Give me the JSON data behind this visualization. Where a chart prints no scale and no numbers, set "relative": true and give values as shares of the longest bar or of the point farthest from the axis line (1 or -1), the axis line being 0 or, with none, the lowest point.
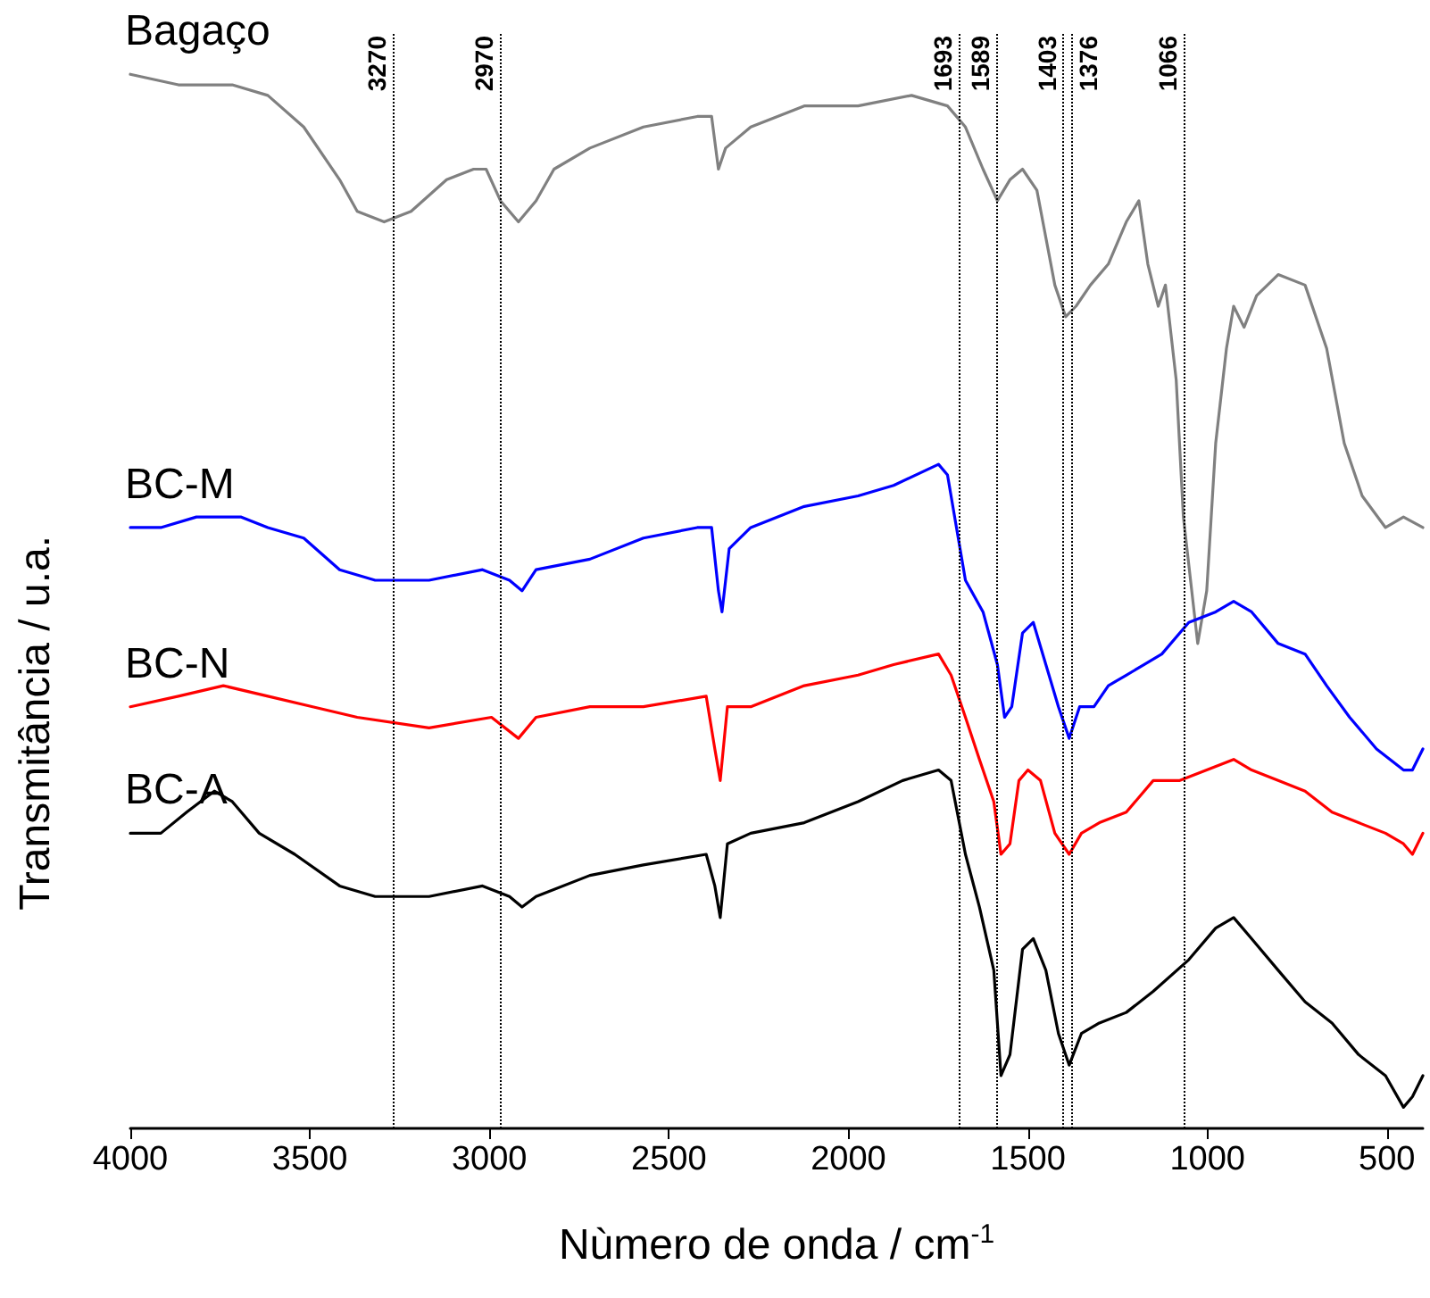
{
  "chart_data": {
    "type": "line",
    "relative": true,
    "xlabel": "Nùmero de onda / cm$^{-1}$",
    "ylabel": "Transmitância / u.a.",
    "xlim": [
      4000,
      400
    ],
    "xticks": [
      4000,
      3500,
      3000,
      2500,
      2000,
      1500,
      1000,
      500
    ],
    "grid": false,
    "legend": false,
    "marker": "none",
    "line_style": "solid",
    "ref_lines": [
      {
        "axis": "x",
        "value": 3270,
        "label": "3270",
        "line_style": "dotted"
      },
      {
        "axis": "x",
        "value": 2970,
        "label": "2970",
        "line_style": "dotted"
      },
      {
        "axis": "x",
        "value": 1693,
        "label": "1693",
        "line_style": "dotted"
      },
      {
        "axis": "x",
        "value": 1589,
        "label": "1589",
        "line_style": "dotted"
      },
      {
        "axis": "x",
        "value": 1403,
        "label": "1403",
        "line_style": "dotted"
      },
      {
        "axis": "x",
        "value": 1376,
        "label": "1376",
        "line_style": "dotted"
      },
      {
        "axis": "x",
        "value": 1066,
        "label": "1066",
        "line_style": "dotted"
      }
    ],
    "series": [
      {
        "name": "Bagaço",
        "color": "#808080",
        "x": [
          4000,
          3866,
          3716,
          3617,
          3517,
          3417,
          3368,
          3293,
          3218,
          3119,
          3044,
          3009,
          2969,
          2919,
          2870,
          2820,
          2720,
          2571,
          2421,
          2381,
          2362,
          2342,
          2272,
          2123,
          1973,
          1824,
          1724,
          1674,
          1625,
          1585,
          1550,
          1515,
          1475,
          1425,
          1395,
          1366,
          1326,
          1276,
          1226,
          1191,
          1166,
          1137,
          1117,
          1087,
          1067,
          1027,
          1002,
          977,
          947,
          927,
          898,
          863,
          803,
          728,
          668,
          619,
          569,
          504,
          454,
          400
        ],
        "values": [
          1.0,
          0.99,
          0.99,
          0.98,
          0.95,
          0.9,
          0.87,
          0.86,
          0.87,
          0.9,
          0.91,
          0.91,
          0.88,
          0.86,
          0.88,
          0.91,
          0.93,
          0.95,
          0.96,
          0.96,
          0.91,
          0.93,
          0.95,
          0.97,
          0.97,
          0.98,
          0.97,
          0.95,
          0.91,
          0.88,
          0.9,
          0.91,
          0.89,
          0.8,
          0.77,
          0.78,
          0.8,
          0.82,
          0.86,
          0.88,
          0.82,
          0.78,
          0.8,
          0.71,
          0.58,
          0.46,
          0.51,
          0.65,
          0.74,
          0.78,
          0.76,
          0.79,
          0.81,
          0.8,
          0.74,
          0.65,
          0.6,
          0.57,
          0.58,
          0.57
        ]
      },
      {
        "name": "BC-M",
        "color": "#0000ff",
        "x": [
          4000,
          3915,
          3816,
          3691,
          3617,
          3517,
          3417,
          3318,
          3168,
          3019,
          2944,
          2909,
          2870,
          2720,
          2571,
          2421,
          2381,
          2362,
          2352,
          2332,
          2272,
          2123,
          1973,
          1874,
          1749,
          1724,
          1699,
          1674,
          1625,
          1585,
          1565,
          1545,
          1515,
          1485,
          1450,
          1415,
          1385,
          1356,
          1316,
          1276,
          1226,
          1176,
          1127,
          1052,
          977,
          927,
          877,
          803,
          728,
          668,
          604,
          529,
          454,
          429,
          400
        ],
        "values": [
          0.57,
          0.57,
          0.58,
          0.58,
          0.57,
          0.56,
          0.53,
          0.52,
          0.52,
          0.53,
          0.52,
          0.51,
          0.53,
          0.54,
          0.56,
          0.57,
          0.57,
          0.51,
          0.49,
          0.55,
          0.57,
          0.59,
          0.6,
          0.61,
          0.63,
          0.62,
          0.57,
          0.52,
          0.49,
          0.44,
          0.39,
          0.4,
          0.47,
          0.48,
          0.44,
          0.4,
          0.37,
          0.4,
          0.4,
          0.42,
          0.43,
          0.44,
          0.45,
          0.48,
          0.49,
          0.5,
          0.49,
          0.46,
          0.45,
          0.42,
          0.39,
          0.36,
          0.34,
          0.34,
          0.36
        ]
      },
      {
        "name": "BC-N",
        "color": "#ff0000",
        "x": [
          4000,
          3866,
          3741,
          3617,
          3492,
          3368,
          3168,
          2994,
          2919,
          2870,
          2720,
          2571,
          2396,
          2372,
          2357,
          2337,
          2272,
          2123,
          1973,
          1874,
          1749,
          1714,
          1674,
          1635,
          1595,
          1575,
          1550,
          1525,
          1500,
          1465,
          1425,
          1385,
          1351,
          1301,
          1226,
          1151,
          1077,
          1002,
          927,
          877,
          803,
          728,
          653,
          579,
          504,
          454,
          429,
          400
        ],
        "values": [
          0.4,
          0.41,
          0.42,
          0.41,
          0.4,
          0.39,
          0.38,
          0.39,
          0.37,
          0.39,
          0.4,
          0.4,
          0.41,
          0.36,
          0.33,
          0.4,
          0.4,
          0.42,
          0.43,
          0.44,
          0.45,
          0.43,
          0.39,
          0.35,
          0.31,
          0.26,
          0.27,
          0.33,
          0.34,
          0.33,
          0.28,
          0.26,
          0.28,
          0.29,
          0.3,
          0.33,
          0.33,
          0.34,
          0.35,
          0.34,
          0.33,
          0.32,
          0.3,
          0.29,
          0.28,
          0.27,
          0.26,
          0.28
        ]
      },
      {
        "name": "BC-A",
        "color": "#000000",
        "x": [
          4000,
          3915,
          3843,
          3766,
          3716,
          3641,
          3542,
          3417,
          3318,
          3168,
          3019,
          2944,
          2909,
          2870,
          2720,
          2571,
          2396,
          2372,
          2357,
          2337,
          2272,
          2123,
          1973,
          1849,
          1749,
          1714,
          1674,
          1635,
          1595,
          1575,
          1550,
          1515,
          1485,
          1450,
          1415,
          1385,
          1351,
          1301,
          1226,
          1151,
          1052,
          977,
          927,
          877,
          803,
          728,
          653,
          579,
          504,
          454,
          429,
          400
        ],
        "values": [
          0.28,
          0.28,
          0.3,
          0.32,
          0.31,
          0.28,
          0.26,
          0.23,
          0.22,
          0.22,
          0.23,
          0.22,
          0.21,
          0.22,
          0.24,
          0.25,
          0.26,
          0.23,
          0.2,
          0.27,
          0.28,
          0.29,
          0.31,
          0.33,
          0.34,
          0.33,
          0.26,
          0.21,
          0.15,
          0.05,
          0.07,
          0.17,
          0.18,
          0.15,
          0.09,
          0.06,
          0.09,
          0.1,
          0.11,
          0.13,
          0.16,
          0.19,
          0.2,
          0.18,
          0.15,
          0.12,
          0.1,
          0.07,
          0.05,
          0.02,
          0.03,
          0.05
        ]
      }
    ]
  }
}
